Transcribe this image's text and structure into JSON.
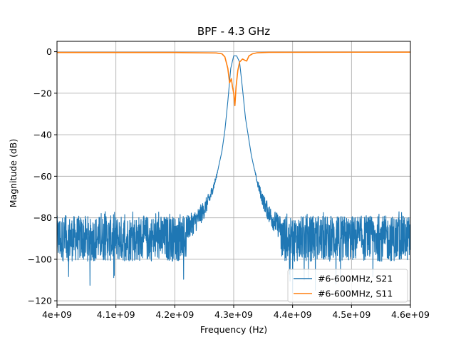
{
  "chart_data": {
    "type": "line",
    "title": "BPF - 4.3 GHz",
    "xlabel": "Frequency (Hz)",
    "ylabel": "Magnitude (dB)",
    "xlim": [
      4000000000,
      4600000000
    ],
    "ylim": [
      -122,
      5
    ],
    "x_ticks": [
      4000000000,
      4100000000,
      4200000000,
      4300000000,
      4400000000,
      4500000000,
      4600000000
    ],
    "x_tick_labels": [
      "4e+09",
      "4.1e+09",
      "4.2e+09",
      "4.3e+09",
      "4.4e+09",
      "4.5e+09",
      "4.6e+09"
    ],
    "y_ticks": [
      0,
      -20,
      -40,
      -60,
      -80,
      -100,
      -120
    ],
    "y_tick_labels": [
      "0",
      "−20",
      "−40",
      "−60",
      "−80",
      "−100",
      "−120"
    ],
    "grid": true,
    "legend_position": "lower-right",
    "series": [
      {
        "name": "#6-600MHz, S21",
        "color": "#1f77b4",
        "noise_floor": {
          "x_ranges": [
            [
              4000000000,
              4220000000
            ],
            [
              4380000000,
              4600000000
            ]
          ],
          "mean": -90,
          "min": -117,
          "max": -77
        },
        "x": [
          4220000000,
          4230000000,
          4240000000,
          4250000000,
          4260000000,
          4270000000,
          4280000000,
          4285000000,
          4290000000,
          4295000000,
          4300000000,
          4305000000,
          4310000000,
          4315000000,
          4320000000,
          4330000000,
          4340000000,
          4350000000,
          4360000000,
          4370000000,
          4380000000
        ],
        "values": [
          -85,
          -83,
          -80,
          -76,
          -70,
          -61,
          -48,
          -38,
          -24,
          -8,
          -2,
          -2,
          -5,
          -18,
          -32,
          -50,
          -63,
          -72,
          -78,
          -82,
          -85
        ]
      },
      {
        "name": "#6-600MHz, S11",
        "color": "#ff7f0e",
        "x": [
          4000000000,
          4200000000,
          4270000000,
          4280000000,
          4285000000,
          4290000000,
          4293000000,
          4296000000,
          4298000000,
          4300000000,
          4302000000,
          4304000000,
          4307000000,
          4310000000,
          4315000000,
          4318000000,
          4322000000,
          4326000000,
          4332000000,
          4340000000,
          4360000000,
          4600000000
        ],
        "values": [
          -0.4,
          -0.4,
          -0.6,
          -1,
          -2.5,
          -8,
          -15,
          -13,
          -17,
          -20,
          -26,
          -17,
          -9,
          -5,
          -3.5,
          -4,
          -4.5,
          -2,
          -1,
          -0.5,
          -0.3,
          -0.2
        ]
      }
    ]
  }
}
